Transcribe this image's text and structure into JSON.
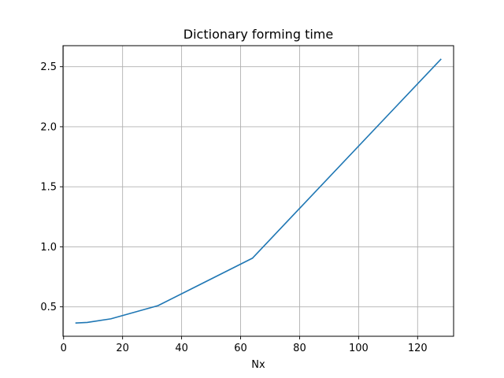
{
  "chart_data": {
    "type": "line",
    "title": "Dictionary forming time",
    "xlabel": "Nx",
    "ylabel": "",
    "xlim": [
      -0.2,
      132.2
    ],
    "ylim": [
      0.255,
      2.675
    ],
    "xticks": [
      0,
      20,
      40,
      60,
      80,
      100,
      120
    ],
    "xtick_labels": [
      "0",
      "20",
      "40",
      "60",
      "80",
      "100",
      "120"
    ],
    "yticks": [
      0.5,
      1.0,
      1.5,
      2.0,
      2.5
    ],
    "ytick_labels": [
      "0.5",
      "1.0",
      "1.5",
      "2.0",
      "2.5"
    ],
    "grid": true,
    "legend": false,
    "series": [
      {
        "color": "#1f77b4",
        "x": [
          4,
          8,
          16,
          32,
          64,
          128
        ],
        "y": [
          0.365,
          0.37,
          0.4,
          0.51,
          0.905,
          2.565
        ]
      }
    ]
  }
}
